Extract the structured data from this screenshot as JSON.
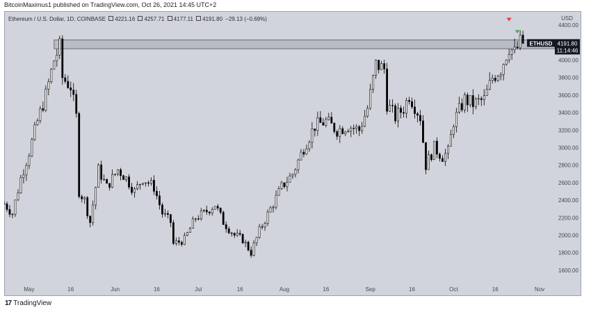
{
  "header": {
    "author": "BitcoinMaximus1",
    "published_text": "published on TradingView.com, Oct 26, 2021 14:45 UTC+2"
  },
  "legend": {
    "symbol_text": "Ethereum / U.S. Dollar, 1D, COINBASE",
    "open": "4221.16",
    "high": "4257.71",
    "low": "4177.11",
    "close": "4191.80",
    "change": "−29.13 (−0.69%)"
  },
  "price_tag": {
    "ticker": "ETHUSD",
    "price": "4191.80",
    "countdown": "11:14:46",
    "currency": "USD"
  },
  "footer": {
    "brand": "TradingView",
    "logo": "17"
  },
  "colors": {
    "background": "#d1d4dc",
    "candle_up_fill": "#ffffff",
    "candle_down_fill": "#000000",
    "resistance_zone": "#b8bcc6",
    "marker_red": "#e53935",
    "marker_green": "#4caf50",
    "price_tag_bg": "#131722"
  },
  "chart_data": {
    "type": "candlestick",
    "title": "Ethereum / U.S. Dollar, 1D, COINBASE",
    "xlabel": "",
    "ylabel": "",
    "y_axis_position": "right",
    "ylim": [
      1440,
      4560
    ],
    "y_ticks": [
      1600,
      1800,
      2000,
      2200,
      2400,
      2600,
      2800,
      3000,
      3200,
      3400,
      3600,
      3800,
      4000,
      4200,
      4400
    ],
    "x_start_date": "2021-04-22",
    "x_end_date": "2021-11-06",
    "x_ticks": [
      {
        "date": "2021-05-01",
        "label": "May"
      },
      {
        "date": "2021-05-16",
        "label": "16"
      },
      {
        "date": "2021-06-01",
        "label": "Jun"
      },
      {
        "date": "2021-06-16",
        "label": "16"
      },
      {
        "date": "2021-07-01",
        "label": "Jul"
      },
      {
        "date": "2021-07-16",
        "label": "16"
      },
      {
        "date": "2021-08-01",
        "label": "Aug"
      },
      {
        "date": "2021-08-16",
        "label": "16"
      },
      {
        "date": "2021-09-01",
        "label": "Sep"
      },
      {
        "date": "2021-09-16",
        "label": "16"
      },
      {
        "date": "2021-10-01",
        "label": "Oct"
      },
      {
        "date": "2021-10-16",
        "label": "16"
      },
      {
        "date": "2021-11-01",
        "label": "Nov"
      }
    ],
    "resistance_zone": {
      "low": 4130,
      "high": 4230,
      "start_date": "2021-05-10"
    },
    "markers": [
      {
        "date": "2021-10-21",
        "price": 4460,
        "direction": "down",
        "color": "#e53935"
      },
      {
        "date": "2021-10-24",
        "price": 4320,
        "direction": "down",
        "color": "#4caf50"
      }
    ],
    "anchors": [
      [
        "2021-04-22",
        2360
      ],
      [
        "2021-04-25",
        2250
      ],
      [
        "2021-04-28",
        2650
      ],
      [
        "2021-05-01",
        2950
      ],
      [
        "2021-05-04",
        3300
      ],
      [
        "2021-05-07",
        3600
      ],
      [
        "2021-05-10",
        4000
      ],
      [
        "2021-05-12",
        4150
      ],
      [
        "2021-05-13",
        3800
      ],
      [
        "2021-05-16",
        3700
      ],
      [
        "2021-05-18",
        3350
      ],
      [
        "2021-05-19",
        2500
      ],
      [
        "2021-05-21",
        2400
      ],
      [
        "2021-05-23",
        2150
      ],
      [
        "2021-05-26",
        2750
      ],
      [
        "2021-05-29",
        2550
      ],
      [
        "2021-06-02",
        2750
      ],
      [
        "2021-06-05",
        2650
      ],
      [
        "2021-06-08",
        2500
      ],
      [
        "2021-06-11",
        2650
      ],
      [
        "2021-06-15",
        2550
      ],
      [
        "2021-06-18",
        2250
      ],
      [
        "2021-06-21",
        2150
      ],
      [
        "2021-06-22",
        1900
      ],
      [
        "2021-06-26",
        1950
      ],
      [
        "2021-06-30",
        2200
      ],
      [
        "2021-07-03",
        2250
      ],
      [
        "2021-07-07",
        2350
      ],
      [
        "2021-07-10",
        2150
      ],
      [
        "2021-07-14",
        2000
      ],
      [
        "2021-07-17",
        1950
      ],
      [
        "2021-07-20",
        1800
      ],
      [
        "2021-07-23",
        2050
      ],
      [
        "2021-07-27",
        2300
      ],
      [
        "2021-07-31",
        2550
      ],
      [
        "2021-08-04",
        2700
      ],
      [
        "2021-08-08",
        3000
      ],
      [
        "2021-08-12",
        3250
      ],
      [
        "2021-08-16",
        3300
      ],
      [
        "2021-08-20",
        3200
      ],
      [
        "2021-08-24",
        3250
      ],
      [
        "2021-08-28",
        3200
      ],
      [
        "2021-08-31",
        3450
      ],
      [
        "2021-09-03",
        3950
      ],
      [
        "2021-09-06",
        3900
      ],
      [
        "2021-09-07",
        3500
      ],
      [
        "2021-09-10",
        3350
      ],
      [
        "2021-09-13",
        3450
      ],
      [
        "2021-09-15",
        3600
      ],
      [
        "2021-09-19",
        3350
      ],
      [
        "2021-09-21",
        2800
      ],
      [
        "2021-09-24",
        3000
      ],
      [
        "2021-09-27",
        2900
      ],
      [
        "2021-09-29",
        2950
      ],
      [
        "2021-10-01",
        3300
      ],
      [
        "2021-10-05",
        3550
      ],
      [
        "2021-10-08",
        3500
      ],
      [
        "2021-10-12",
        3550
      ],
      [
        "2021-10-15",
        3800
      ],
      [
        "2021-10-18",
        3900
      ],
      [
        "2021-10-21",
        4150
      ],
      [
        "2021-10-23",
        4080
      ],
      [
        "2021-10-25",
        4200
      ],
      [
        "2021-10-26",
        4191.8
      ]
    ]
  }
}
